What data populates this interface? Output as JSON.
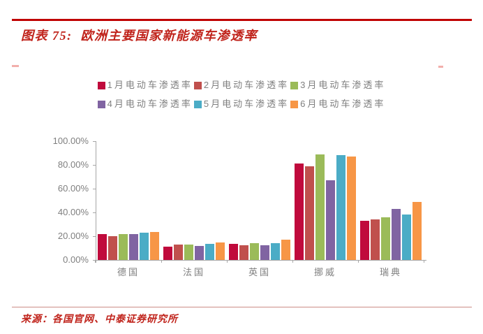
{
  "title": "图表 75:  欧洲主要国家新能源车渗透率",
  "source": "来源：各国官网、中泰证券研究所",
  "colors": {
    "rule_red": "#C00000",
    "title_red": "#C0231B",
    "axis_gray": "#A6A6A6",
    "label_gray": "#7F7F7F"
  },
  "chart_data": {
    "type": "bar",
    "title": "欧洲主要国家新能源车渗透率",
    "categories": [
      "德国",
      "法国",
      "英国",
      "挪威",
      "瑞典"
    ],
    "series": [
      {
        "name": "1月电动车渗透率",
        "color": "#C00A3C",
        "values": [
          21.5,
          11.0,
          13.5,
          81.0,
          33.0
        ]
      },
      {
        "name": "2月电动车渗透率",
        "color": "#C0504D",
        "values": [
          20.0,
          13.0,
          12.5,
          79.0,
          34.0
        ]
      },
      {
        "name": "3月电动车渗透率",
        "color": "#9BBB59",
        "values": [
          22.0,
          13.0,
          14.0,
          89.0,
          36.0
        ]
      },
      {
        "name": "4月电动车渗透率",
        "color": "#8064A2",
        "values": [
          21.5,
          11.5,
          12.5,
          67.0,
          43.0
        ]
      },
      {
        "name": "5月电动车渗透率",
        "color": "#4BACC6",
        "values": [
          23.0,
          13.5,
          14.0,
          88.0,
          38.5
        ]
      },
      {
        "name": "6月电动车渗透率",
        "color": "#F79646",
        "values": [
          23.5,
          15.0,
          17.0,
          87.0,
          49.0
        ]
      }
    ],
    "ylim": [
      0,
      100
    ],
    "ytick_labels": [
      "100.00%",
      "80.00%",
      "60.00%",
      "40.00%",
      "20.00%",
      "0.00%"
    ],
    "ytick_values": [
      100,
      80,
      60,
      40,
      20,
      0
    ],
    "grid": false,
    "legend_position": "top",
    "legend_rows": [
      [
        0,
        1,
        2
      ],
      [
        3,
        4,
        5
      ]
    ]
  }
}
